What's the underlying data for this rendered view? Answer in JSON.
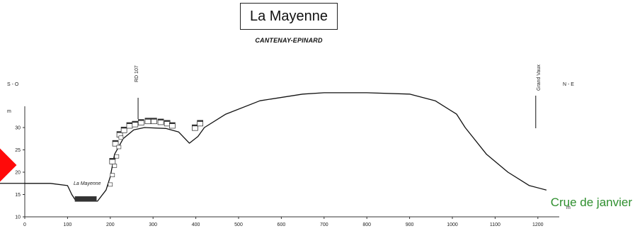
{
  "title": "La Mayenne",
  "subtitle": "CANTENAY-EPINARD",
  "labels": {
    "left_bank": "S - O",
    "right_bank": "N - E",
    "road": "RD 107",
    "place": "Grand Vaux",
    "river": "La Mayenne",
    "y_unit": "m",
    "x_unit": "m"
  },
  "legend": {
    "flood_label": "Crue de janvier",
    "flood_color": "#2f8f2f",
    "marker_color": "#ff0a0a"
  },
  "axes": {
    "x_ticks": [
      "0",
      "100",
      "200",
      "300",
      "400",
      "500",
      "600",
      "700",
      "800",
      "900",
      "1000",
      "1100",
      "1200"
    ],
    "y_ticks": [
      "10",
      "15",
      "20",
      "25",
      "30"
    ],
    "xlim": [
      0,
      1250
    ],
    "ylim": [
      10,
      32
    ]
  },
  "profile": {
    "units": "distance m / elevation m",
    "points": [
      [
        0,
        17.5
      ],
      [
        60,
        17.5
      ],
      [
        100,
        17
      ],
      [
        110,
        15
      ],
      [
        120,
        13.5
      ],
      [
        170,
        13.5
      ],
      [
        190,
        16
      ],
      [
        200,
        19
      ],
      [
        210,
        24
      ],
      [
        230,
        27.5
      ],
      [
        255,
        29.5
      ],
      [
        280,
        30
      ],
      [
        330,
        29.8
      ],
      [
        360,
        29
      ],
      [
        385,
        26.5
      ],
      [
        405,
        28
      ],
      [
        420,
        30
      ],
      [
        470,
        33
      ],
      [
        550,
        36
      ],
      [
        650,
        37.5
      ],
      [
        700,
        37.8
      ],
      [
        800,
        37.8
      ],
      [
        900,
        37.5
      ],
      [
        960,
        36
      ],
      [
        1010,
        33
      ],
      [
        1030,
        30
      ],
      [
        1080,
        24
      ],
      [
        1130,
        20
      ],
      [
        1180,
        17
      ],
      [
        1220,
        16
      ]
    ]
  }
}
